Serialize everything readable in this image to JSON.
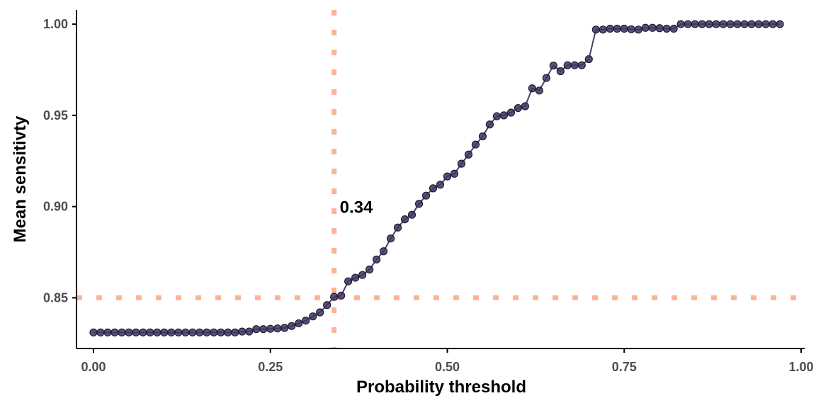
{
  "colors": {
    "line": "#4a4166",
    "point_fill": "#3d3560",
    "point_stroke": "#1f1a36",
    "reference": "#fbb595",
    "axis": "#000000",
    "tick_text": "#4d4d4d"
  },
  "chart_data": {
    "type": "line",
    "title": "",
    "xlabel": "Probability threshold",
    "ylabel": "Mean sensitivty",
    "xlim": [
      -0.024,
      1.005
    ],
    "ylim": [
      0.8222,
      1.0078
    ],
    "x_ticks": [
      0.0,
      0.25,
      0.5,
      0.75,
      1.0
    ],
    "x_tick_labels": [
      "0.00",
      "0.25",
      "0.50",
      "0.75",
      "1.00"
    ],
    "y_ticks": [
      0.85,
      0.9,
      0.95,
      1.0
    ],
    "y_tick_labels": [
      "0.85",
      "0.90",
      "0.95",
      "1.00"
    ],
    "grid": false,
    "series": [
      {
        "name": "Mean sensitivity",
        "points": [
          [
            0.0,
            0.831
          ],
          [
            0.01,
            0.831
          ],
          [
            0.02,
            0.831
          ],
          [
            0.03,
            0.831
          ],
          [
            0.04,
            0.831
          ],
          [
            0.05,
            0.831
          ],
          [
            0.06,
            0.831
          ],
          [
            0.07,
            0.831
          ],
          [
            0.08,
            0.831
          ],
          [
            0.09,
            0.831
          ],
          [
            0.1,
            0.831
          ],
          [
            0.11,
            0.831
          ],
          [
            0.12,
            0.831
          ],
          [
            0.13,
            0.831
          ],
          [
            0.14,
            0.831
          ],
          [
            0.15,
            0.831
          ],
          [
            0.16,
            0.831
          ],
          [
            0.17,
            0.831
          ],
          [
            0.18,
            0.831
          ],
          [
            0.19,
            0.831
          ],
          [
            0.2,
            0.831
          ],
          [
            0.21,
            0.8315
          ],
          [
            0.22,
            0.8315
          ],
          [
            0.23,
            0.8328
          ],
          [
            0.24,
            0.8328
          ],
          [
            0.25,
            0.833
          ],
          [
            0.26,
            0.8332
          ],
          [
            0.27,
            0.8335
          ],
          [
            0.28,
            0.8345
          ],
          [
            0.29,
            0.836
          ],
          [
            0.3,
            0.8375
          ],
          [
            0.31,
            0.8398
          ],
          [
            0.32,
            0.842
          ],
          [
            0.33,
            0.846
          ],
          [
            0.34,
            0.8505
          ],
          [
            0.35,
            0.8512
          ],
          [
            0.36,
            0.859
          ],
          [
            0.37,
            0.861
          ],
          [
            0.38,
            0.8625
          ],
          [
            0.39,
            0.8655
          ],
          [
            0.4,
            0.871
          ],
          [
            0.41,
            0.8755
          ],
          [
            0.42,
            0.8825
          ],
          [
            0.43,
            0.8885
          ],
          [
            0.44,
            0.893
          ],
          [
            0.45,
            0.8955
          ],
          [
            0.46,
            0.9015
          ],
          [
            0.47,
            0.906
          ],
          [
            0.48,
            0.91
          ],
          [
            0.49,
            0.912
          ],
          [
            0.5,
            0.9165
          ],
          [
            0.51,
            0.918
          ],
          [
            0.52,
            0.9235
          ],
          [
            0.53,
            0.9285
          ],
          [
            0.54,
            0.934
          ],
          [
            0.55,
            0.9385
          ],
          [
            0.56,
            0.945
          ],
          [
            0.57,
            0.9495
          ],
          [
            0.58,
            0.95
          ],
          [
            0.59,
            0.9515
          ],
          [
            0.6,
            0.954
          ],
          [
            0.61,
            0.955
          ],
          [
            0.62,
            0.9648
          ],
          [
            0.63,
            0.9636
          ],
          [
            0.64,
            0.9705
          ],
          [
            0.65,
            0.9773
          ],
          [
            0.66,
            0.9742
          ],
          [
            0.67,
            0.9775
          ],
          [
            0.68,
            0.9775
          ],
          [
            0.69,
            0.9775
          ],
          [
            0.7,
            0.9808
          ],
          [
            0.71,
            0.997
          ],
          [
            0.72,
            0.997
          ],
          [
            0.73,
            0.9975
          ],
          [
            0.74,
            0.9975
          ],
          [
            0.75,
            0.9975
          ],
          [
            0.76,
            0.9972
          ],
          [
            0.77,
            0.997
          ],
          [
            0.78,
            0.998
          ],
          [
            0.79,
            0.998
          ],
          [
            0.8,
            0.9978
          ],
          [
            0.81,
            0.9975
          ],
          [
            0.82,
            0.9975
          ],
          [
            0.83,
            1.0
          ],
          [
            0.84,
            1.0
          ],
          [
            0.85,
            1.0
          ],
          [
            0.86,
            1.0
          ],
          [
            0.87,
            1.0
          ],
          [
            0.88,
            1.0
          ],
          [
            0.89,
            1.0
          ],
          [
            0.9,
            1.0
          ],
          [
            0.91,
            1.0
          ],
          [
            0.92,
            1.0
          ],
          [
            0.93,
            1.0
          ],
          [
            0.94,
            1.0
          ],
          [
            0.95,
            1.0
          ],
          [
            0.96,
            1.0
          ],
          [
            0.97,
            1.0
          ]
        ]
      }
    ],
    "reference_lines": [
      {
        "name": "threshold-vline",
        "orientation": "vertical",
        "value": 0.34,
        "style": "dotted"
      },
      {
        "name": "sensitivity-hline",
        "orientation": "horizontal",
        "value": 0.85,
        "style": "dotted"
      }
    ],
    "annotations": [
      {
        "text": "0.34",
        "x": 0.35,
        "y": 0.9
      }
    ]
  }
}
